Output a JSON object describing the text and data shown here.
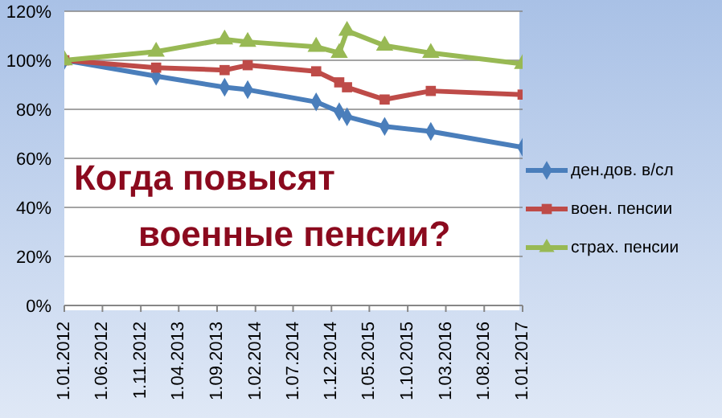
{
  "chart_data": {
    "type": "line",
    "x": [
      "2012-01-01",
      "2013-01-01",
      "2013-10-01",
      "2014-01-01",
      "2014-10-01",
      "2015-01-01",
      "2015-02-01",
      "2015-07-01",
      "2016-01-01",
      "2017-01-01"
    ],
    "series": [
      {
        "name": "ден.дов. в/сл",
        "color": "#4a7ebb",
        "marker": "diamond",
        "values": [
          100,
          93.5,
          89,
          88,
          83,
          79,
          77,
          73,
          71,
          64.5
        ]
      },
      {
        "name": "воен. пенсии",
        "color": "#be4b48",
        "marker": "square",
        "values": [
          100,
          97,
          96,
          98,
          95.5,
          91,
          89,
          84,
          87.5,
          86
        ]
      },
      {
        "name": "страх. пенсии",
        "color": "#98b954",
        "marker": "triangle",
        "values": [
          100,
          103.5,
          108.5,
          107.5,
          105.5,
          103,
          112,
          106,
          103,
          98.5
        ]
      }
    ],
    "xlim": [
      "2012-01-01",
      "2017-01-01"
    ],
    "xticks": [
      {
        "value": "2012-01-01",
        "label": "1.01.2012"
      },
      {
        "value": "2012-06-01",
        "label": "1.06.2012"
      },
      {
        "value": "2012-11-01",
        "label": "1.11.2012"
      },
      {
        "value": "2013-04-01",
        "label": "1.04.2013"
      },
      {
        "value": "2013-09-01",
        "label": "1.09.2013"
      },
      {
        "value": "2014-02-01",
        "label": "1.02.2014"
      },
      {
        "value": "2014-07-01",
        "label": "1.07.2014"
      },
      {
        "value": "2014-12-01",
        "label": "1.12.2014"
      },
      {
        "value": "2015-05-01",
        "label": "1.05.2015"
      },
      {
        "value": "2015-10-01",
        "label": "1.10.2015"
      },
      {
        "value": "2016-03-01",
        "label": "1.03.2016"
      },
      {
        "value": "2016-08-01",
        "label": "1.08.2016"
      },
      {
        "value": "2017-01-01",
        "label": "1.01.2017"
      }
    ],
    "ylim": [
      0,
      120
    ],
    "yticks": [
      {
        "value": 0,
        "label": "0%"
      },
      {
        "value": 20,
        "label": "20%"
      },
      {
        "value": 40,
        "label": "40%"
      },
      {
        "value": 60,
        "label": "60%"
      },
      {
        "value": 80,
        "label": "80%"
      },
      {
        "value": 100,
        "label": "100%"
      },
      {
        "value": 120,
        "label": "120%"
      }
    ],
    "grid": "y",
    "legend": "right",
    "line_style": "solid",
    "annotations": [
      "Когда повысят",
      "военные пенсии?"
    ]
  }
}
